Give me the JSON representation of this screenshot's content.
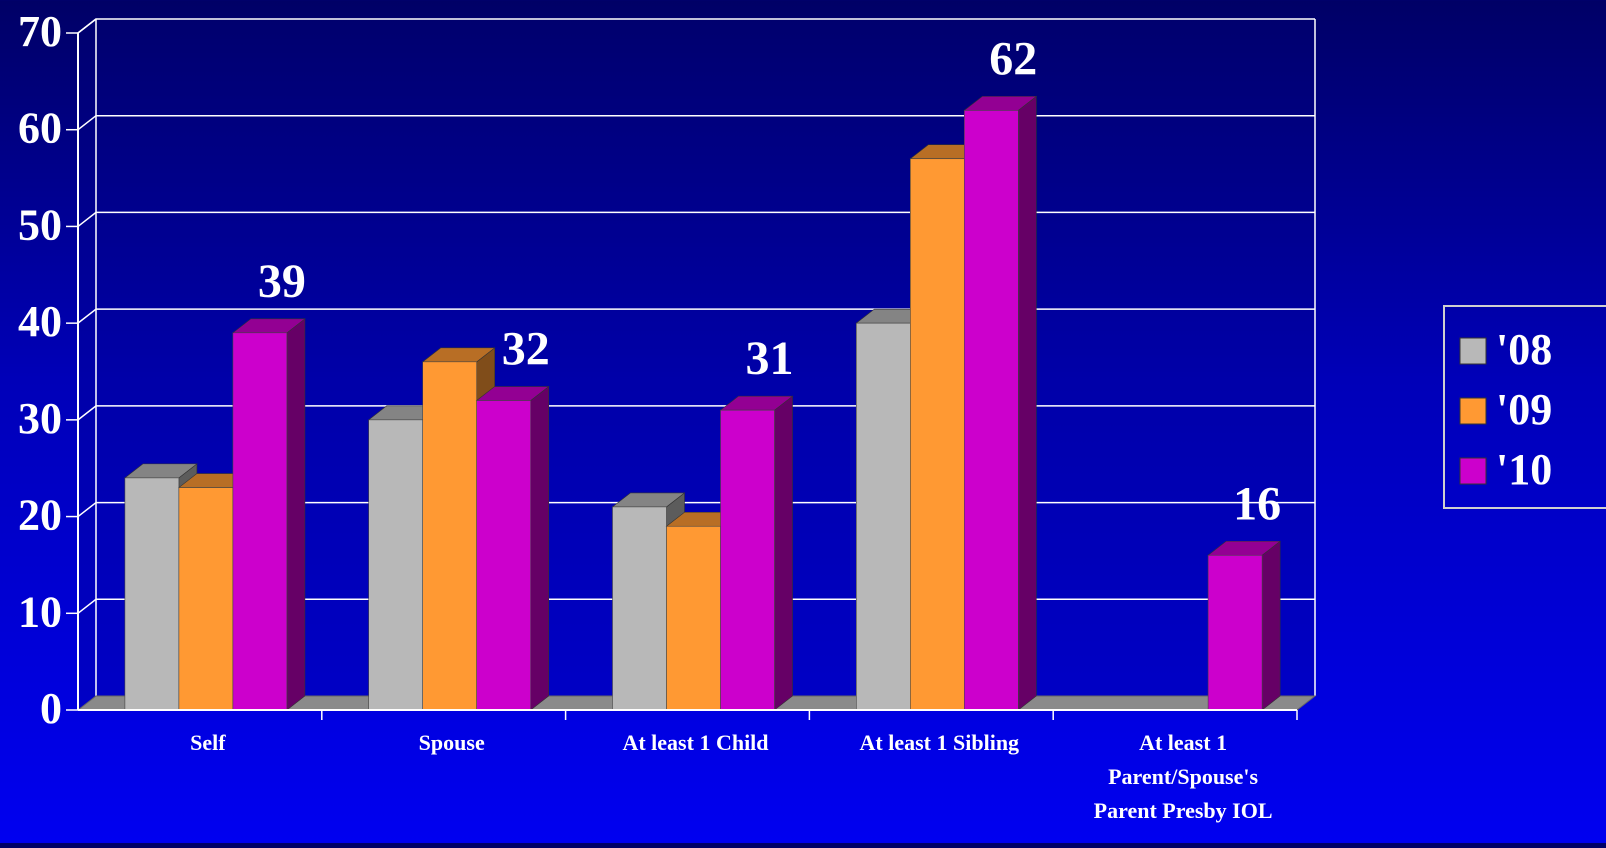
{
  "chart_data": {
    "type": "bar",
    "title": "",
    "xlabel": "",
    "ylabel": "",
    "ylim": [
      0,
      70
    ],
    "yticks": [
      "0",
      "10",
      "20",
      "30",
      "40",
      "50",
      "60",
      "70"
    ],
    "grid": true,
    "three_d": true,
    "legend_position": "right",
    "categories": [
      "Self",
      "Spouse",
      "At least 1 Child",
      "At least 1 Sibling",
      "At least 1 Parent/Spouse's Parent Presby IOL"
    ],
    "category_lines": [
      [
        "Self"
      ],
      [
        "Spouse"
      ],
      [
        "At least 1 Child"
      ],
      [
        "At least 1 Sibling"
      ],
      [
        "At least 1",
        "Parent/Spouse's",
        "Parent Presby IOL"
      ]
    ],
    "series": [
      {
        "name": "'08",
        "values": [
          24,
          30,
          21,
          40,
          0
        ],
        "color": "#b8b8b8"
      },
      {
        "name": "'09",
        "values": [
          23,
          36,
          19,
          57,
          0
        ],
        "color": "#ff9933"
      },
      {
        "name": "'10",
        "values": [
          39,
          32,
          31,
          62,
          16
        ],
        "color": "#cc00cc"
      }
    ],
    "data_labels": {
      "series": "'10",
      "values": [
        "39",
        "32",
        "31",
        "62",
        "16"
      ]
    },
    "colors": {
      "background_top": "#000066",
      "background_bottom": "#0000f0",
      "plot_background": "#00007a",
      "grid": "#ffffff",
      "text": "#ffffff",
      "floor": "#8a8a8a"
    }
  }
}
